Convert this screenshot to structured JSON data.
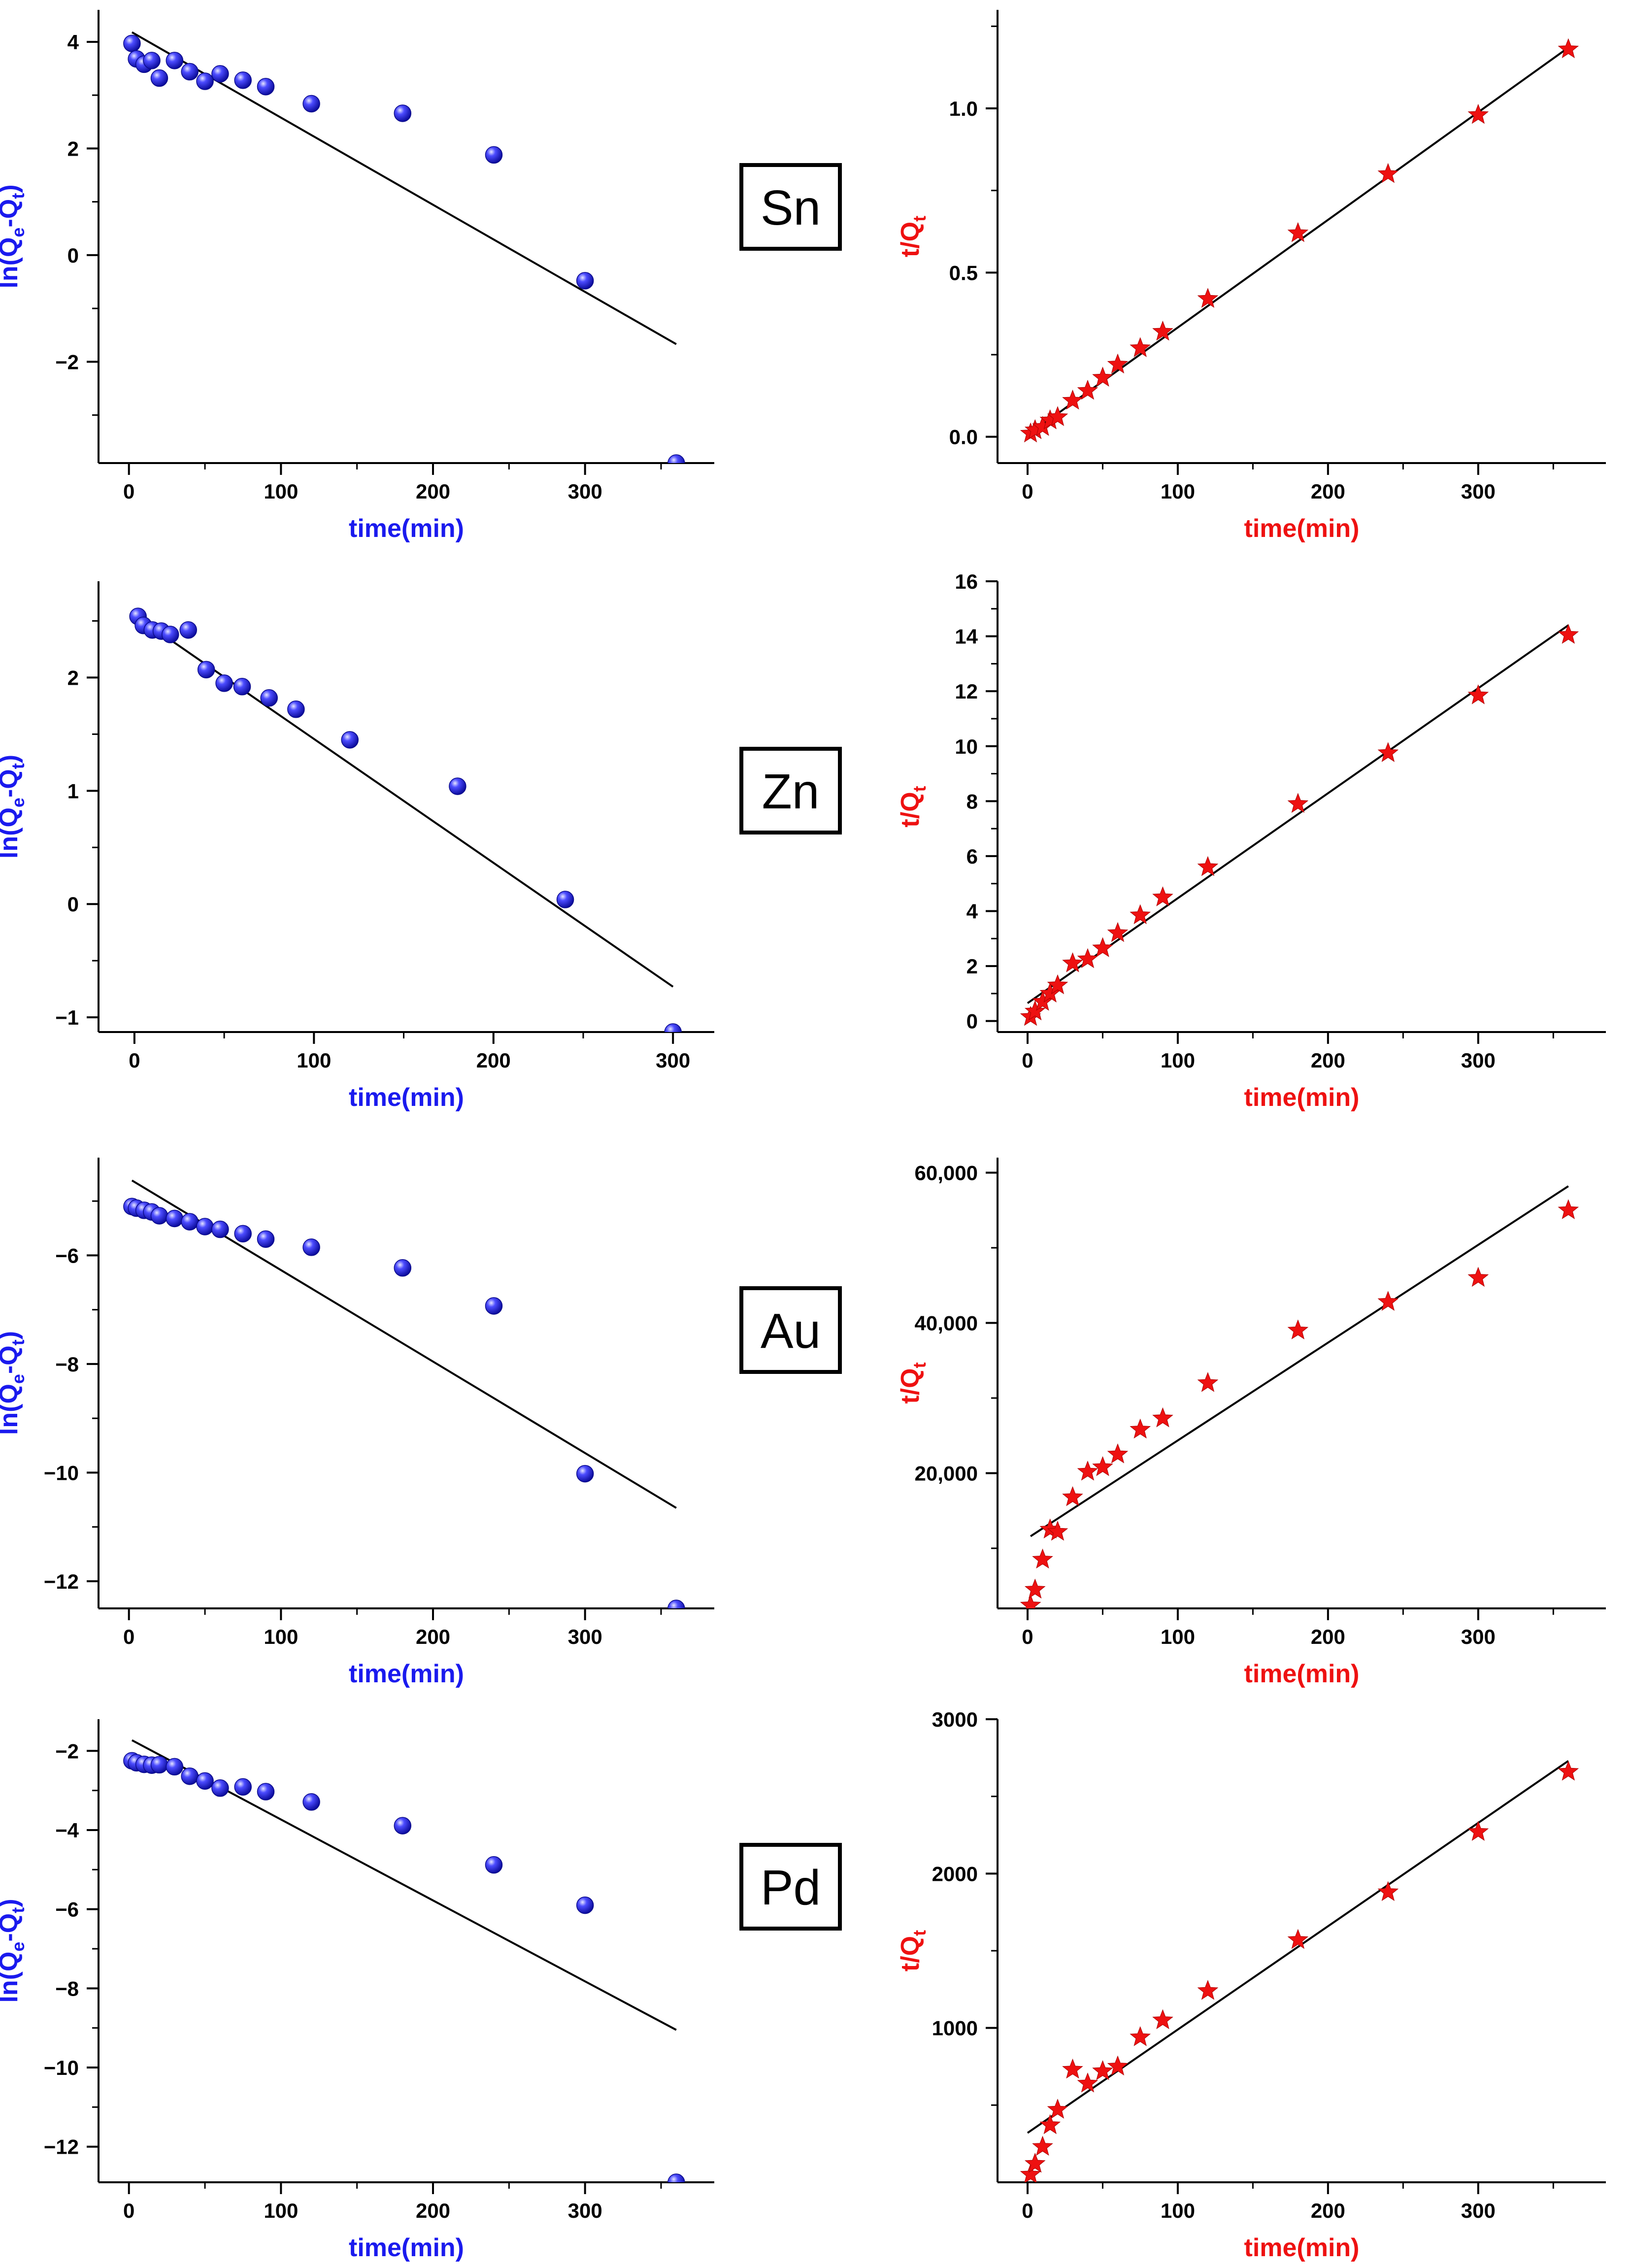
{
  "colors": {
    "first_order": "#1a1aee",
    "second_order": "#ee1111",
    "fit_line": "#000000",
    "axis": "#000000"
  },
  "labels": [
    "Sn",
    "Zn",
    "Au",
    "Pd"
  ],
  "chart_data": [
    {
      "type": "scatter",
      "metal": "Sn",
      "model": "pseudo-first-order",
      "marker": "sphere",
      "xlabel": "time(min)",
      "ylabel": "ln(Qe-Qt)",
      "xlim": [
        -20,
        385
      ],
      "ylim": [
        -3.9,
        4.6
      ],
      "xticks": [
        0,
        100,
        200,
        300
      ],
      "xtick_labels": [
        "0",
        "100",
        "200",
        "300"
      ],
      "yticks": [
        -2,
        0,
        2,
        4
      ],
      "ytick_labels": [
        "−2",
        "0",
        "2",
        "4"
      ],
      "x": [
        2,
        5,
        10,
        15,
        20,
        30,
        40,
        50,
        60,
        75,
        90,
        120,
        180,
        240,
        300,
        360
      ],
      "y": [
        3.97,
        3.68,
        3.58,
        3.65,
        3.32,
        3.65,
        3.44,
        3.26,
        3.4,
        3.28,
        3.16,
        2.84,
        2.66,
        1.88,
        -0.48,
        -3.9
      ],
      "fit": {
        "x": [
          2,
          360
        ],
        "y": [
          4.18,
          -1.67
        ]
      }
    },
    {
      "type": "scatter",
      "metal": "Sn",
      "model": "pseudo-second-order",
      "marker": "star",
      "xlabel": "time(min)",
      "ylabel": "t/Qt",
      "xlim": [
        -20,
        385
      ],
      "ylim": [
        -0.08,
        1.3
      ],
      "xticks": [
        0,
        100,
        200,
        300
      ],
      "xtick_labels": [
        "0",
        "100",
        "200",
        "300"
      ],
      "yticks": [
        0.0,
        0.5,
        1.0
      ],
      "ytick_labels": [
        "0.0",
        "0.5",
        "1.0"
      ],
      "x": [
        2,
        5,
        10,
        15,
        20,
        30,
        40,
        50,
        60,
        75,
        90,
        120,
        180,
        240,
        300,
        360
      ],
      "y": [
        0.01,
        0.02,
        0.03,
        0.05,
        0.06,
        0.11,
        0.14,
        0.18,
        0.22,
        0.27,
        0.32,
        0.42,
        0.62,
        0.8,
        0.98,
        1.18
      ],
      "fit": {
        "x": [
          0,
          360
        ],
        "y": [
          0.005,
          1.185
        ]
      }
    },
    {
      "type": "scatter",
      "metal": "Zn",
      "model": "pseudo-first-order",
      "marker": "sphere",
      "xlabel": "time(min)",
      "ylabel": "ln(Qe-Qt)",
      "xlim": [
        -20,
        323
      ],
      "ylim": [
        -1.13,
        2.85
      ],
      "xticks": [
        0,
        100,
        200,
        300
      ],
      "xtick_labels": [
        "0",
        "100",
        "200",
        "300"
      ],
      "yticks": [
        -1,
        0,
        1,
        2
      ],
      "ytick_labels": [
        "−1",
        "0",
        "1",
        "2"
      ],
      "x": [
        2,
        5,
        10,
        15,
        20,
        30,
        40,
        50,
        60,
        75,
        90,
        120,
        180,
        240,
        300
      ],
      "y": [
        2.54,
        2.46,
        2.42,
        2.41,
        2.38,
        2.42,
        2.07,
        1.95,
        1.92,
        1.82,
        1.72,
        1.45,
        1.04,
        0.04,
        -1.13
      ],
      "fit": {
        "x": [
          2,
          300
        ],
        "y": [
          2.53,
          -0.73
        ]
      }
    },
    {
      "type": "scatter",
      "metal": "Zn",
      "model": "pseudo-second-order",
      "marker": "star",
      "xlabel": "time(min)",
      "ylabel": "t/Qt",
      "xlim": [
        -20,
        385
      ],
      "ylim": [
        -0.4,
        16
      ],
      "xticks": [
        0,
        100,
        200,
        300
      ],
      "xtick_labels": [
        "0",
        "100",
        "200",
        "300"
      ],
      "yticks": [
        0,
        2,
        4,
        6,
        8,
        10,
        12,
        14,
        16
      ],
      "ytick_labels": [
        "0",
        "2",
        "4",
        "6",
        "8",
        "10",
        "12",
        "14",
        "16"
      ],
      "x": [
        2,
        5,
        10,
        15,
        20,
        30,
        40,
        50,
        60,
        75,
        90,
        120,
        180,
        240,
        300,
        360
      ],
      "y": [
        0.15,
        0.35,
        0.7,
        1.0,
        1.3,
        2.1,
        2.25,
        2.65,
        3.2,
        3.85,
        4.5,
        5.6,
        7.9,
        9.75,
        11.85,
        14.05
      ],
      "fit": {
        "x": [
          0,
          360
        ],
        "y": [
          0.65,
          14.4
        ]
      }
    },
    {
      "type": "scatter",
      "metal": "Au",
      "model": "pseudo-first-order",
      "marker": "sphere",
      "xlabel": "time(min)",
      "ylabel": "ln(Qe-Qt)",
      "xlim": [
        -20,
        385
      ],
      "ylim": [
        -12.5,
        -4.2
      ],
      "xticks": [
        0,
        100,
        200,
        300
      ],
      "xtick_labels": [
        "0",
        "100",
        "200",
        "300"
      ],
      "yticks": [
        -12,
        -10,
        -8,
        -6
      ],
      "ytick_labels": [
        "−12",
        "−10",
        "−8",
        "−6"
      ],
      "x": [
        2,
        5,
        10,
        15,
        20,
        30,
        40,
        50,
        60,
        75,
        90,
        120,
        180,
        240,
        300,
        360
      ],
      "y": [
        -5.1,
        -5.13,
        -5.17,
        -5.2,
        -5.27,
        -5.32,
        -5.38,
        -5.47,
        -5.52,
        -5.6,
        -5.7,
        -5.85,
        -6.23,
        -6.93,
        -10.02,
        -12.5
      ],
      "fit": {
        "x": [
          2,
          360
        ],
        "y": [
          -4.62,
          -10.65
        ]
      }
    },
    {
      "type": "scatter",
      "metal": "Au",
      "model": "pseudo-second-order",
      "marker": "star",
      "xlabel": "time(min)",
      "ylabel": "t/Qt",
      "xlim": [
        -20,
        385
      ],
      "ylim": [
        2000,
        62000
      ],
      "xticks": [
        0,
        100,
        200,
        300
      ],
      "xtick_labels": [
        "0",
        "100",
        "200",
        "300"
      ],
      "yticks": [
        20000,
        40000,
        60000
      ],
      "ytick_labels": [
        "20,000",
        "40,000",
        "60,000"
      ],
      "x": [
        2,
        5,
        10,
        15,
        20,
        30,
        40,
        50,
        60,
        75,
        90,
        120,
        180,
        240,
        300,
        360
      ],
      "y": [
        2400,
        4500,
        8500,
        12500,
        12200,
        16800,
        20200,
        20800,
        22500,
        25800,
        27300,
        32000,
        39000,
        42800,
        46000,
        55000
      ],
      "fit": {
        "x": [
          2,
          360
        ],
        "y": [
          11600,
          58200
        ]
      }
    },
    {
      "type": "scatter",
      "metal": "Pd",
      "model": "pseudo-first-order",
      "marker": "sphere",
      "xlabel": "time(min)",
      "ylabel": "ln(Qe-Qt)",
      "xlim": [
        -20,
        385
      ],
      "ylim": [
        -12.9,
        -1.2
      ],
      "xticks": [
        0,
        100,
        200,
        300
      ],
      "xtick_labels": [
        "0",
        "100",
        "200",
        "300"
      ],
      "yticks": [
        -12,
        -10,
        -8,
        -6,
        -4,
        -2
      ],
      "ytick_labels": [
        "−12",
        "−10",
        "−8",
        "−6",
        "−4",
        "−2"
      ],
      "x": [
        2,
        5,
        10,
        15,
        20,
        30,
        40,
        50,
        60,
        75,
        90,
        120,
        180,
        240,
        300,
        360
      ],
      "y": [
        -2.25,
        -2.3,
        -2.34,
        -2.36,
        -2.35,
        -2.4,
        -2.64,
        -2.76,
        -2.94,
        -2.91,
        -3.03,
        -3.29,
        -3.89,
        -4.88,
        -5.9,
        -12.9
      ],
      "fit": {
        "x": [
          2,
          360
        ],
        "y": [
          -1.73,
          -9.05
        ]
      }
    },
    {
      "type": "scatter",
      "metal": "Pd",
      "model": "pseudo-second-order",
      "marker": "star",
      "xlabel": "time(min)",
      "ylabel": "t/Qt",
      "xlim": [
        -20,
        385
      ],
      "ylim": [
        0,
        3000
      ],
      "xticks": [
        0,
        100,
        200,
        300
      ],
      "xtick_labels": [
        "0",
        "100",
        "200",
        "300"
      ],
      "yticks": [
        1000,
        2000,
        3000
      ],
      "ytick_labels": [
        "1000",
        "2000",
        "3000"
      ],
      "x": [
        2,
        5,
        10,
        15,
        20,
        30,
        40,
        50,
        60,
        75,
        90,
        120,
        180,
        240,
        300,
        360
      ],
      "y": [
        50,
        120,
        230,
        370,
        470,
        730,
        640,
        720,
        750,
        940,
        1050,
        1240,
        1570,
        1880,
        2270,
        2660
      ],
      "fit": {
        "x": [
          0,
          360
        ],
        "y": [
          320,
          2730
        ]
      }
    }
  ]
}
